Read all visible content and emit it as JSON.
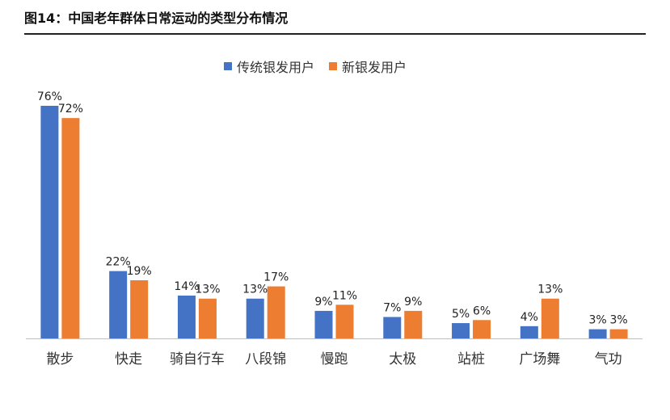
{
  "figure_title": "图14：中国老年群体日常运动的类型分布情况",
  "colors": {
    "series1": "#4472c4",
    "series2": "#ed7d31"
  },
  "chart_data": {
    "type": "bar",
    "categories": [
      "散步",
      "快走",
      "骑自行车",
      "八段锦",
      "慢跑",
      "太极",
      "站桩",
      "广场舞",
      "气功"
    ],
    "series": [
      {
        "name": "传统银发用户",
        "values": [
          76,
          22,
          14,
          13,
          9,
          7,
          5,
          4,
          3
        ]
      },
      {
        "name": "新银发用户",
        "values": [
          72,
          19,
          13,
          17,
          11,
          9,
          6,
          13,
          3
        ]
      }
    ],
    "value_suffix": "%",
    "legend_position": "top-center",
    "grid": false,
    "ylim": [
      0,
      76
    ]
  }
}
